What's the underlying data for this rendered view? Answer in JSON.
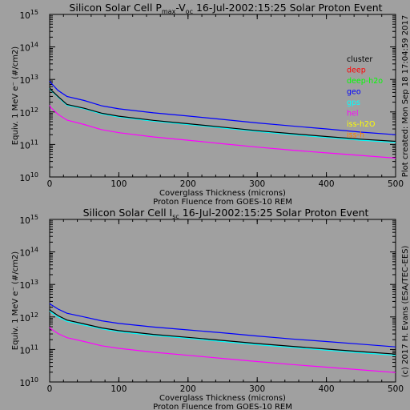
{
  "footer_credit": "(c) 2017 H. Evans (ESA/TEC-EES)",
  "plot_created": "Plot created: Mon Sep 18 17:04:59 2017",
  "legend": [
    {
      "name": "cluster",
      "color": "#000000"
    },
    {
      "name": "deep",
      "color": "#ff0000"
    },
    {
      "name": "deep-h2o",
      "color": "#00ff00"
    },
    {
      "name": "geo",
      "color": "#0000ff"
    },
    {
      "name": "gps",
      "color": "#00ffff"
    },
    {
      "name": "hel",
      "color": "#ff00ff"
    },
    {
      "name": "iss-h2O",
      "color": "#ffff00"
    },
    {
      "name": "iss-h",
      "color": "#ff8000"
    }
  ],
  "chart_data": [
    {
      "type": "line",
      "title_main": "Silicon Solar Cell P",
      "title_sub": "max",
      "title_mid": "-V",
      "title_sub2": "oc",
      "title_rest": " 16-Jul-2002:15:25 Solar Proton Event",
      "xlabel": "Coverglass Thickness (microns)",
      "xlabel2": "Proton Fluence from GOES-10 REM",
      "ylabel": "Equiv. 1 MeV e⁻ (#/cm2)",
      "xlim": [
        0,
        500
      ],
      "ylim_log10": [
        10,
        15
      ],
      "xticks": [
        "0",
        "100",
        "200",
        "300",
        "400",
        "500"
      ],
      "yticks": [
        {
          "base": "10",
          "exp": "10"
        },
        {
          "base": "10",
          "exp": "11"
        },
        {
          "base": "10",
          "exp": "12"
        },
        {
          "base": "10",
          "exp": "13"
        },
        {
          "base": "10",
          "exp": "14"
        },
        {
          "base": "10",
          "exp": "15"
        }
      ],
      "x": [
        0,
        2,
        12,
        25,
        50,
        75,
        100,
        150,
        200,
        250,
        300,
        350,
        400,
        450,
        500
      ],
      "series": [
        {
          "name": "geo",
          "color": "#0000ff",
          "values": [
            9000000000000.0,
            7800000000000.0,
            4600000000000.0,
            3000000000000.0,
            2250000000000.0,
            1550000000000.0,
            1250000000000.0,
            940000000000.0,
            750000000000.0,
            590000000000.0,
            460000000000.0,
            370000000000.0,
            300000000000.0,
            240000000000.0,
            200000000000.0
          ]
        },
        {
          "name": "gps",
          "color": "#00ffff",
          "values": [
            5400000000000.0,
            4600000000000.0,
            2900000000000.0,
            1600000000000.0,
            1250000000000.0,
            870000000000.0,
            700000000000.0,
            520000000000.0,
            410000000000.0,
            320000000000.0,
            250000000000.0,
            200000000000.0,
            165000000000.0,
            135000000000.0,
            115000000000.0
          ]
        },
        {
          "name": "cluster",
          "color": "#000000",
          "values": [
            5600000000000.0,
            4800000000000.0,
            3000000000000.0,
            1700000000000.0,
            1300000000000.0,
            920000000000.0,
            740000000000.0,
            550000000000.0,
            435000000000.0,
            340000000000.0,
            265000000000.0,
            215000000000.0,
            175000000000.0,
            145000000000.0,
            125000000000.0
          ]
        },
        {
          "name": "hel",
          "color": "#ff00ff",
          "values": [
            1600000000000.0,
            1350000000000.0,
            850000000000.0,
            560000000000.0,
            410000000000.0,
            285000000000.0,
            230000000000.0,
            170000000000.0,
            135000000000.0,
            105000000000.0,
            83000000000.0,
            67000000000.0,
            55000000000.0,
            46000000000.0,
            38000000000.0
          ]
        }
      ]
    },
    {
      "type": "line",
      "title_main": "Silicon Solar Cell I",
      "title_sub": "sc",
      "title_mid": "",
      "title_sub2": "",
      "title_rest": " 16-Jul-2002:15:25 Solar Proton Event",
      "xlabel": "Coverglass Thickness (microns)",
      "xlabel2": "Proton Fluence from GOES-10 REM",
      "ylabel": "Equiv. 1 MeV e⁻ (#/cm2)",
      "xlim": [
        0,
        500
      ],
      "ylim_log10": [
        10,
        15
      ],
      "xticks": [
        "0",
        "100",
        "200",
        "300",
        "400",
        "500"
      ],
      "yticks": [
        {
          "base": "10",
          "exp": "10"
        },
        {
          "base": "10",
          "exp": "11"
        },
        {
          "base": "10",
          "exp": "12"
        },
        {
          "base": "10",
          "exp": "13"
        },
        {
          "base": "10",
          "exp": "14"
        },
        {
          "base": "10",
          "exp": "15"
        }
      ],
      "x": [
        0,
        2,
        12,
        25,
        50,
        75,
        100,
        150,
        200,
        250,
        300,
        350,
        400,
        450,
        500
      ],
      "series": [
        {
          "name": "geo",
          "color": "#0000ff",
          "values": [
            2600000000000.0,
            2400000000000.0,
            1750000000000.0,
            1300000000000.0,
            1000000000000.0,
            760000000000.0,
            630000000000.0,
            490000000000.0,
            400000000000.0,
            325000000000.0,
            260000000000.0,
            210000000000.0,
            175000000000.0,
            145000000000.0,
            120000000000.0
          ]
        },
        {
          "name": "gps",
          "color": "#00ffff",
          "values": [
            1550000000000.0,
            1400000000000.0,
            1000000000000.0,
            730000000000.0,
            560000000000.0,
            430000000000.0,
            350000000000.0,
            270000000000.0,
            220000000000.0,
            175000000000.0,
            140000000000.0,
            115000000000.0,
            95000000000.0,
            79000000000.0,
            66000000000.0
          ]
        },
        {
          "name": "cluster",
          "color": "#000000",
          "values": [
            1700000000000.0,
            1550000000000.0,
            1100000000000.0,
            800000000000.0,
            610000000000.0,
            460000000000.0,
            380000000000.0,
            290000000000.0,
            235000000000.0,
            190000000000.0,
            152000000000.0,
            125000000000.0,
            103000000000.0,
            86000000000.0,
            72000000000.0
          ]
        },
        {
          "name": "hel",
          "color": "#ff00ff",
          "values": [
            480000000000.0,
            430000000000.0,
            310000000000.0,
            230000000000.0,
            175000000000.0,
            130000000000.0,
            108000000000.0,
            82000000000.0,
            66000000000.0,
            53000000000.0,
            42500000000.0,
            34500000000.0,
            28500000000.0,
            23500000000.0,
            19500000000.0
          ]
        }
      ]
    }
  ]
}
